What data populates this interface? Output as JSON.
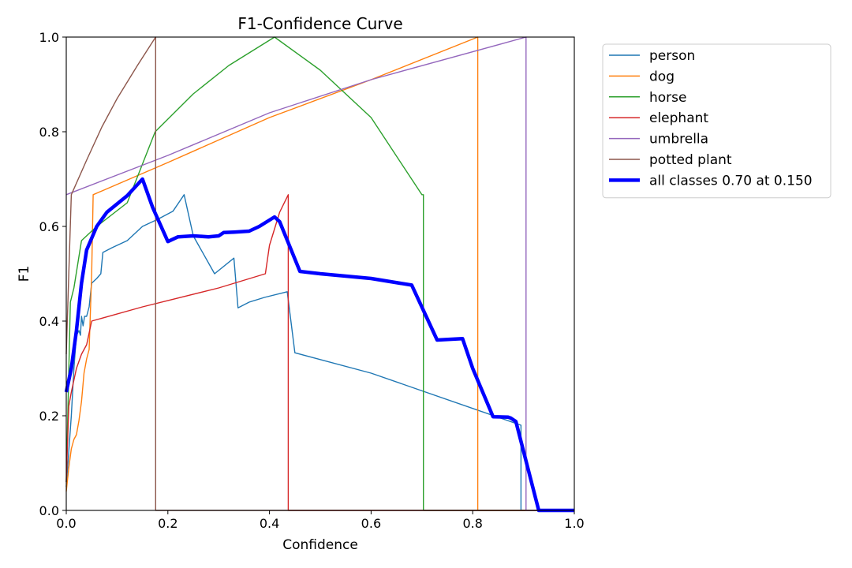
{
  "chart_data": {
    "type": "line",
    "title": "F1-Confidence Curve",
    "xlabel": "Confidence",
    "ylabel": "F1",
    "xlim": [
      0.0,
      1.0
    ],
    "ylim": [
      0.0,
      1.0
    ],
    "xticks": [
      "0.0",
      "0.2",
      "0.4",
      "0.6",
      "0.8",
      "1.0"
    ],
    "yticks": [
      "0.0",
      "0.2",
      "0.4",
      "0.6",
      "0.8",
      "1.0"
    ],
    "legend_position": "outside-right-top",
    "series": [
      {
        "name": "person",
        "color": "#1f77b4",
        "width": "thin",
        "points": [
          [
            0.0,
            0.05
          ],
          [
            0.01,
            0.2
          ],
          [
            0.015,
            0.3
          ],
          [
            0.02,
            0.37
          ],
          [
            0.025,
            0.38
          ],
          [
            0.028,
            0.37
          ],
          [
            0.03,
            0.41
          ],
          [
            0.033,
            0.39
          ],
          [
            0.036,
            0.41
          ],
          [
            0.04,
            0.41
          ],
          [
            0.045,
            0.43
          ],
          [
            0.05,
            0.48
          ],
          [
            0.06,
            0.49
          ],
          [
            0.068,
            0.5
          ],
          [
            0.072,
            0.545
          ],
          [
            0.09,
            0.555
          ],
          [
            0.12,
            0.57
          ],
          [
            0.15,
            0.6
          ],
          [
            0.18,
            0.615
          ],
          [
            0.21,
            0.632
          ],
          [
            0.232,
            0.667
          ],
          [
            0.25,
            0.58
          ],
          [
            0.292,
            0.5
          ],
          [
            0.33,
            0.533
          ],
          [
            0.338,
            0.428
          ],
          [
            0.36,
            0.44
          ],
          [
            0.39,
            0.45
          ],
          [
            0.435,
            0.462
          ],
          [
            0.45,
            0.333
          ],
          [
            0.6,
            0.29
          ],
          [
            0.895,
            0.18
          ],
          [
            0.895,
            0.0
          ],
          [
            1.0,
            0.0
          ]
        ]
      },
      {
        "name": "dog",
        "color": "#ff7f0e",
        "width": "thin",
        "points": [
          [
            0.0,
            0.04
          ],
          [
            0.005,
            0.09
          ],
          [
            0.01,
            0.13
          ],
          [
            0.015,
            0.15
          ],
          [
            0.02,
            0.16
          ],
          [
            0.025,
            0.19
          ],
          [
            0.03,
            0.23
          ],
          [
            0.035,
            0.29
          ],
          [
            0.04,
            0.32
          ],
          [
            0.045,
            0.34
          ],
          [
            0.05,
            0.5
          ],
          [
            0.053,
            0.667
          ],
          [
            0.2,
            0.735
          ],
          [
            0.4,
            0.83
          ],
          [
            0.6,
            0.91
          ],
          [
            0.81,
            1.0
          ],
          [
            0.81,
            0.0
          ],
          [
            1.0,
            0.0
          ]
        ]
      },
      {
        "name": "horse",
        "color": "#2ca02c",
        "width": "thin",
        "points": [
          [
            0.0,
            0.06
          ],
          [
            0.008,
            0.44
          ],
          [
            0.015,
            0.47
          ],
          [
            0.03,
            0.57
          ],
          [
            0.06,
            0.6
          ],
          [
            0.12,
            0.65
          ],
          [
            0.175,
            0.8
          ],
          [
            0.25,
            0.88
          ],
          [
            0.32,
            0.94
          ],
          [
            0.41,
            1.0
          ],
          [
            0.5,
            0.93
          ],
          [
            0.6,
            0.83
          ],
          [
            0.7,
            0.667
          ],
          [
            0.703,
            0.667
          ],
          [
            0.703,
            0.0
          ],
          [
            1.0,
            0.0
          ]
        ]
      },
      {
        "name": "elephant",
        "color": "#d62728",
        "width": "thin",
        "points": [
          [
            0.0,
            0.06
          ],
          [
            0.005,
            0.22
          ],
          [
            0.01,
            0.25
          ],
          [
            0.02,
            0.3
          ],
          [
            0.03,
            0.33
          ],
          [
            0.04,
            0.35
          ],
          [
            0.05,
            0.4
          ],
          [
            0.15,
            0.43
          ],
          [
            0.3,
            0.47
          ],
          [
            0.392,
            0.5
          ],
          [
            0.4,
            0.56
          ],
          [
            0.42,
            0.63
          ],
          [
            0.437,
            0.667
          ],
          [
            0.437,
            0.0
          ],
          [
            1.0,
            0.0
          ]
        ]
      },
      {
        "name": "umbrella",
        "color": "#9467bd",
        "width": "thin",
        "points": [
          [
            0.0,
            0.667
          ],
          [
            0.2,
            0.75
          ],
          [
            0.4,
            0.84
          ],
          [
            0.6,
            0.91
          ],
          [
            0.905,
            1.0
          ],
          [
            0.905,
            0.0
          ],
          [
            1.0,
            0.0
          ]
        ]
      },
      {
        "name": "potted plant",
        "color": "#8c564b",
        "width": "thin",
        "points": [
          [
            0.0,
            0.33
          ],
          [
            0.005,
            0.5
          ],
          [
            0.01,
            0.667
          ],
          [
            0.04,
            0.74
          ],
          [
            0.07,
            0.81
          ],
          [
            0.1,
            0.87
          ],
          [
            0.14,
            0.94
          ],
          [
            0.176,
            1.0
          ],
          [
            0.176,
            0.0
          ],
          [
            1.0,
            0.0
          ]
        ]
      },
      {
        "name": "all classes 0.70 at 0.150",
        "color": "#0000ff",
        "width": "thick",
        "points": [
          [
            0.0,
            0.25
          ],
          [
            0.01,
            0.3
          ],
          [
            0.02,
            0.38
          ],
          [
            0.03,
            0.48
          ],
          [
            0.04,
            0.55
          ],
          [
            0.06,
            0.6
          ],
          [
            0.08,
            0.63
          ],
          [
            0.12,
            0.665
          ],
          [
            0.15,
            0.7
          ],
          [
            0.17,
            0.64
          ],
          [
            0.2,
            0.568
          ],
          [
            0.22,
            0.578
          ],
          [
            0.25,
            0.58
          ],
          [
            0.28,
            0.578
          ],
          [
            0.3,
            0.58
          ],
          [
            0.31,
            0.587
          ],
          [
            0.33,
            0.588
          ],
          [
            0.36,
            0.59
          ],
          [
            0.38,
            0.6
          ],
          [
            0.41,
            0.62
          ],
          [
            0.42,
            0.61
          ],
          [
            0.46,
            0.505
          ],
          [
            0.5,
            0.5
          ],
          [
            0.6,
            0.49
          ],
          [
            0.68,
            0.476
          ],
          [
            0.73,
            0.36
          ],
          [
            0.78,
            0.363
          ],
          [
            0.8,
            0.3
          ],
          [
            0.84,
            0.198
          ],
          [
            0.87,
            0.197
          ],
          [
            0.875,
            0.195
          ],
          [
            0.885,
            0.188
          ],
          [
            0.93,
            0.0
          ],
          [
            1.0,
            0.0
          ]
        ]
      }
    ]
  }
}
